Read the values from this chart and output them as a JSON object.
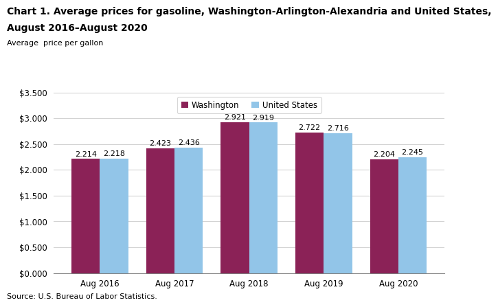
{
  "title_line1": "Chart 1. Average prices for gasoline, Washington-Arlington-Alexandria and United States,",
  "title_line2": "August 2016–August 2020",
  "subtitle": "Average  price per gallon",
  "source": "Source: U.S. Bureau of Labor Statistics.",
  "categories": [
    "Aug 2016",
    "Aug 2017",
    "Aug 2018",
    "Aug 2019",
    "Aug 2020"
  ],
  "washington": [
    2.214,
    2.423,
    2.921,
    2.722,
    2.204
  ],
  "us": [
    2.218,
    2.436,
    2.919,
    2.716,
    2.245
  ],
  "washington_color": "#8B2257",
  "us_color": "#92C5E8",
  "ylim": [
    0,
    3.5
  ],
  "yticks": [
    0.0,
    0.5,
    1.0,
    1.5,
    2.0,
    2.5,
    3.0,
    3.5
  ],
  "legend_labels": [
    "Washington",
    "United States"
  ],
  "bar_width": 0.38,
  "title_fontsize": 10,
  "subtitle_fontsize": 8,
  "tick_fontsize": 8.5,
  "label_fontsize": 8,
  "source_fontsize": 8
}
